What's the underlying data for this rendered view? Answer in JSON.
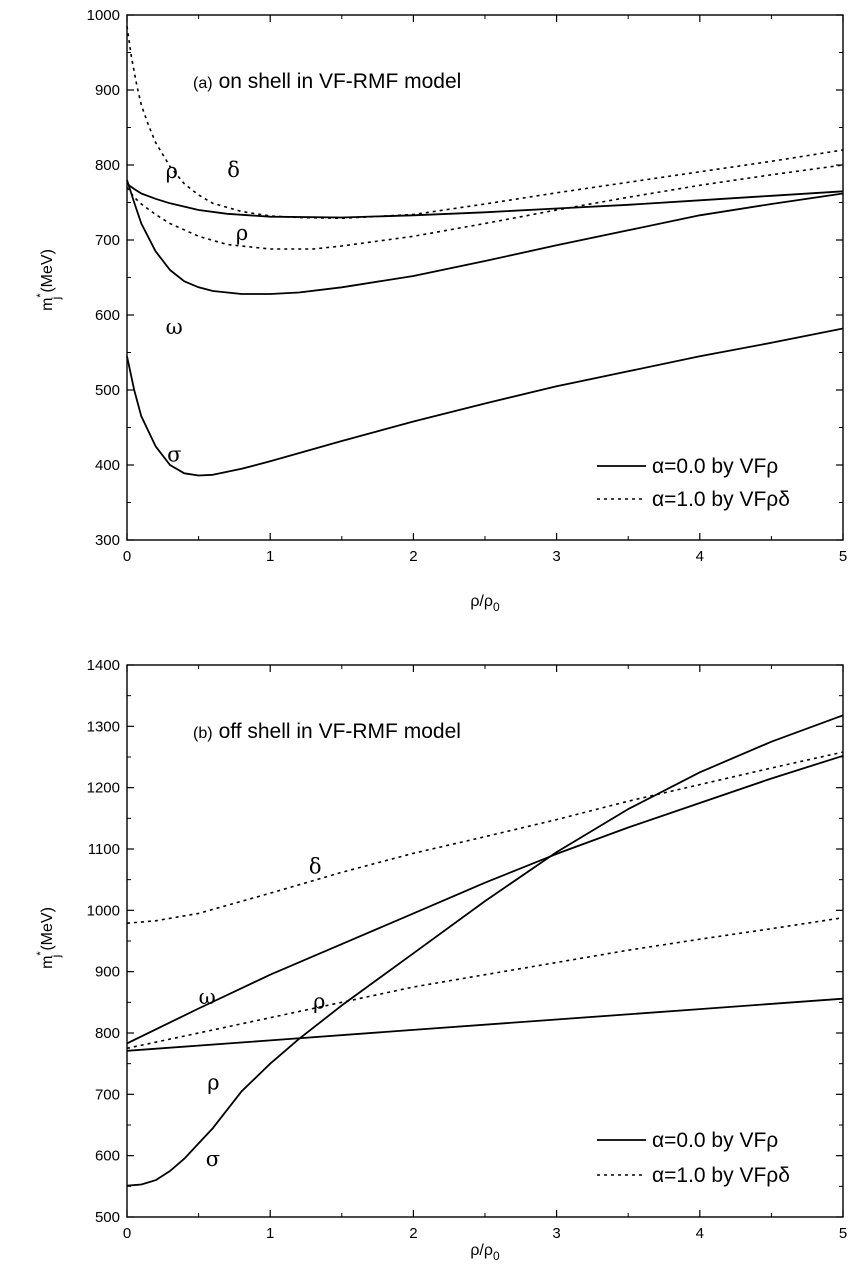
{
  "chart_data": [
    {
      "type": "line",
      "annotation_prefix": "(a)",
      "annotation_text": "on shell in VF-RMF model",
      "xlabel": "ρ/ρ",
      "xlabel_sub": "0",
      "ylabel_main": "m",
      "ylabel_sup": "*",
      "ylabel_sub": "j",
      "ylabel_unit": "(MeV)",
      "xlim": [
        0,
        5
      ],
      "ylim": [
        300,
        1000
      ],
      "xticks": [
        "0",
        "1",
        "2",
        "3",
        "4",
        "5"
      ],
      "yticks": [
        "300",
        "400",
        "500",
        "600",
        "700",
        "800",
        "900",
        "1000"
      ],
      "legend": {
        "position": "bottom-right",
        "entries": [
          {
            "label": "α=0.0 by VFρ",
            "style": "solid"
          },
          {
            "label": "α=1.0 by VFρδ",
            "style": "dashed"
          }
        ]
      },
      "series": [
        {
          "label": "σ",
          "style": "solid",
          "label_at": [
            0.28,
            405
          ],
          "x": [
            0,
            0.05,
            0.1,
            0.2,
            0.3,
            0.4,
            0.5,
            0.6,
            0.8,
            1.0,
            1.5,
            2.0,
            2.5,
            3.0,
            3.5,
            4.0,
            4.5,
            5.0
          ],
          "y": [
            545,
            500,
            465,
            425,
            400,
            389,
            386,
            387,
            395,
            405,
            432,
            458,
            482,
            505,
            525,
            545,
            563,
            582
          ]
        },
        {
          "label": "ω",
          "style": "solid",
          "label_at": [
            0.27,
            575
          ],
          "x": [
            0,
            0.05,
            0.1,
            0.2,
            0.3,
            0.4,
            0.5,
            0.6,
            0.8,
            1.0,
            1.2,
            1.5,
            2.0,
            2.5,
            3.0,
            3.5,
            4.0,
            4.5,
            5.0
          ],
          "y": [
            780,
            750,
            722,
            685,
            660,
            645,
            637,
            632,
            628,
            628,
            630,
            637,
            652,
            672,
            693,
            713,
            733,
            748,
            762
          ]
        },
        {
          "label": "ρ",
          "style": "solid",
          "label_at": [
            0.27,
            783
          ],
          "x": [
            0,
            0.05,
            0.1,
            0.2,
            0.3,
            0.5,
            0.7,
            1.0,
            1.5,
            2.0,
            2.5,
            3.0,
            3.5,
            4.0,
            4.5,
            5.0
          ],
          "y": [
            775,
            768,
            762,
            755,
            749,
            740,
            735,
            731,
            730,
            733,
            737,
            742,
            747,
            753,
            759,
            765
          ]
        },
        {
          "label": "ρ",
          "style": "dashed",
          "label_at": [
            0.76,
            700
          ],
          "x": [
            0,
            0.05,
            0.1,
            0.2,
            0.3,
            0.5,
            0.7,
            1.0,
            1.3,
            1.5,
            2.0,
            2.5,
            3.0,
            3.5,
            4.0,
            4.5,
            5.0
          ],
          "y": [
            770,
            757,
            748,
            734,
            722,
            705,
            694,
            688,
            688,
            692,
            705,
            722,
            740,
            757,
            773,
            787,
            800
          ]
        },
        {
          "label": "δ",
          "style": "dashed",
          "label_at": [
            0.7,
            784
          ],
          "x": [
            0,
            0.03,
            0.07,
            0.1,
            0.15,
            0.2,
            0.3,
            0.4,
            0.5,
            0.6,
            0.8,
            1.0,
            1.2,
            1.5,
            2.0,
            2.5,
            3.0,
            3.5,
            4.0,
            4.5,
            5.0
          ],
          "y": [
            985,
            945,
            905,
            880,
            853,
            830,
            798,
            775,
            760,
            749,
            738,
            732,
            730,
            729,
            734,
            748,
            763,
            777,
            791,
            805,
            820
          ]
        }
      ]
    },
    {
      "type": "line",
      "annotation_prefix": "(b)",
      "annotation_text": "off shell in VF-RMF model",
      "xlabel": "ρ/ρ",
      "xlabel_sub": "0",
      "ylabel_main": "m",
      "ylabel_sup": "*",
      "ylabel_sub": "j",
      "ylabel_unit": "(MeV)",
      "xlim": [
        0,
        5
      ],
      "ylim": [
        500,
        1400
      ],
      "xticks": [
        "0",
        "1",
        "2",
        "3",
        "4",
        "5"
      ],
      "yticks": [
        "500",
        "600",
        "700",
        "800",
        "900",
        "1000",
        "1100",
        "1200",
        "1300",
        "1400"
      ],
      "legend": {
        "position": "bottom-right",
        "entries": [
          {
            "label": "α=0.0 by VFρ",
            "style": "solid"
          },
          {
            "label": "α=1.0 by VFρδ",
            "style": "dashed"
          }
        ]
      },
      "series": [
        {
          "label": "σ",
          "style": "solid",
          "label_at": [
            0.55,
            583
          ],
          "x": [
            0,
            0.1,
            0.2,
            0.3,
            0.4,
            0.5,
            0.6,
            0.8,
            1.0,
            1.2,
            1.5,
            2.0,
            2.5,
            3.0,
            3.5,
            4.0,
            4.5,
            5.0
          ],
          "y": [
            551,
            553,
            560,
            575,
            595,
            620,
            645,
            705,
            750,
            790,
            845,
            930,
            1015,
            1095,
            1165,
            1225,
            1275,
            1318
          ]
        },
        {
          "label": "ω",
          "style": "solid",
          "label_at": [
            0.5,
            847
          ],
          "x": [
            0,
            0.5,
            1.0,
            1.5,
            2.0,
            2.5,
            3.0,
            3.5,
            4.0,
            4.5,
            5.0
          ],
          "y": [
            783,
            840,
            895,
            945,
            995,
            1045,
            1092,
            1135,
            1175,
            1215,
            1252
          ]
        },
        {
          "label": "ρ",
          "style": "solid",
          "label_at": [
            0.56,
            708
          ],
          "x": [
            0,
            1,
            2,
            3,
            4,
            5
          ],
          "y": [
            771,
            788,
            805,
            822,
            839,
            856
          ]
        },
        {
          "label": "ρ",
          "style": "dashed",
          "label_at": [
            1.3,
            840
          ],
          "x": [
            0,
            0.5,
            1.0,
            1.5,
            2.0,
            2.5,
            3.0,
            3.5,
            4.0,
            4.5,
            5.0
          ],
          "y": [
            775,
            800,
            825,
            850,
            875,
            895,
            915,
            935,
            953,
            970,
            988
          ]
        },
        {
          "label": "δ",
          "style": "dashed",
          "label_at": [
            1.27,
            1060
          ],
          "x": [
            0,
            0.2,
            0.5,
            1.0,
            1.5,
            2.0,
            2.5,
            3.0,
            3.5,
            4.0,
            4.5,
            5.0
          ],
          "y": [
            979,
            983,
            995,
            1028,
            1062,
            1093,
            1120,
            1148,
            1178,
            1205,
            1232,
            1258
          ]
        }
      ]
    }
  ]
}
